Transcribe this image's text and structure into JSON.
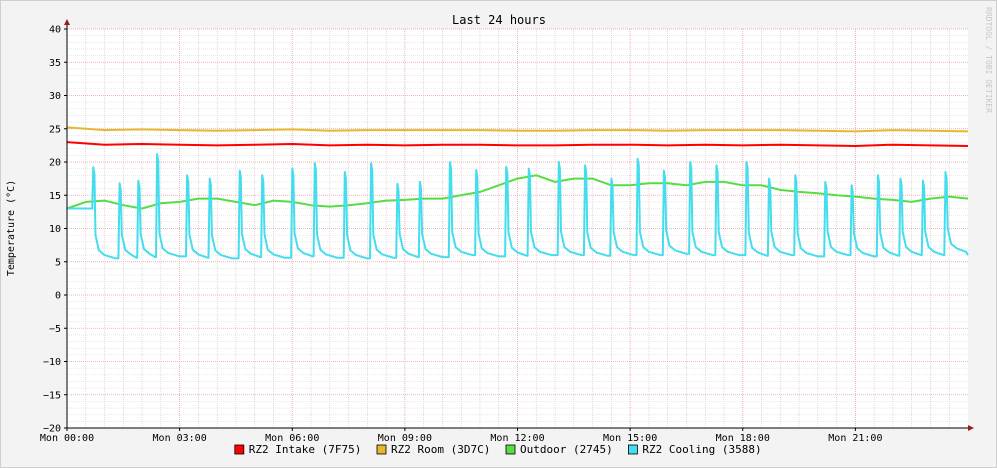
{
  "chart_data": {
    "type": "line",
    "title": "Last 24 hours",
    "ylabel": "Temperature (°C)",
    "xlabel": "",
    "watermark": "RRDTOOL / TOBI OETIKER",
    "ylim": [
      -20,
      40
    ],
    "y_ticks": [
      -20,
      -15,
      -10,
      -5,
      0,
      5,
      10,
      15,
      20,
      25,
      30,
      35,
      40
    ],
    "xlim_hours": [
      0,
      24
    ],
    "x_ticks": [
      {
        "hour": 0,
        "label": "Mon 00:00"
      },
      {
        "hour": 3,
        "label": "Mon 03:00"
      },
      {
        "hour": 6,
        "label": "Mon 06:00"
      },
      {
        "hour": 9,
        "label": "Mon 09:00"
      },
      {
        "hour": 12,
        "label": "Mon 12:00"
      },
      {
        "hour": 15,
        "label": "Mon 15:00"
      },
      {
        "hour": 18,
        "label": "Mon 18:00"
      },
      {
        "hour": 21,
        "label": "Mon 21:00"
      }
    ],
    "grid": true,
    "legend_position": "bottom",
    "series": [
      {
        "name": "RZ2 Intake (7F75)",
        "color": "#ff0000",
        "x": [
          0,
          1,
          2,
          3,
          4,
          5,
          6,
          7,
          8,
          9,
          10,
          11,
          12,
          13,
          14,
          15,
          16,
          17,
          18,
          19,
          20,
          21,
          22,
          23,
          24
        ],
        "values": [
          23,
          22.6,
          22.7,
          22.6,
          22.5,
          22.6,
          22.7,
          22.5,
          22.6,
          22.5,
          22.6,
          22.6,
          22.5,
          22.5,
          22.6,
          22.6,
          22.5,
          22.6,
          22.5,
          22.6,
          22.5,
          22.4,
          22.6,
          22.5,
          22.4
        ]
      },
      {
        "name": "RZ2 Room (3D7C)",
        "color": "#e6b830",
        "x": [
          0,
          1,
          2,
          3,
          4,
          5,
          6,
          7,
          8,
          9,
          10,
          11,
          12,
          13,
          14,
          15,
          16,
          17,
          18,
          19,
          20,
          21,
          22,
          23,
          24
        ],
        "values": [
          25.2,
          24.8,
          24.9,
          24.8,
          24.7,
          24.8,
          24.9,
          24.7,
          24.8,
          24.8,
          24.8,
          24.8,
          24.7,
          24.7,
          24.8,
          24.8,
          24.7,
          24.8,
          24.8,
          24.8,
          24.7,
          24.6,
          24.8,
          24.7,
          24.6
        ]
      },
      {
        "name": "Outdoor (2745)",
        "color": "#55dd44",
        "x": [
          0,
          0.5,
          1,
          1.5,
          2,
          2.5,
          3,
          3.5,
          4,
          4.5,
          5,
          5.5,
          6,
          6.5,
          7,
          7.5,
          8,
          8.5,
          9,
          9.5,
          10,
          10.5,
          11,
          11.5,
          12,
          12.5,
          13,
          13.5,
          14,
          14.5,
          15,
          15.5,
          16,
          16.5,
          17,
          17.5,
          18,
          18.5,
          19,
          19.5,
          20,
          20.5,
          21,
          21.5,
          22,
          22.5,
          23,
          23.5,
          24
        ],
        "values": [
          13.0,
          14.0,
          14.2,
          13.5,
          13.0,
          13.8,
          14.0,
          14.5,
          14.5,
          14.0,
          13.5,
          14.2,
          14.0,
          13.5,
          13.3,
          13.5,
          13.8,
          14.2,
          14.3,
          14.5,
          14.5,
          15.0,
          15.5,
          16.5,
          17.5,
          18.0,
          17.0,
          17.5,
          17.5,
          16.5,
          16.5,
          16.8,
          16.8,
          16.5,
          17.0,
          17.0,
          16.5,
          16.5,
          15.8,
          15.5,
          15.3,
          15.0,
          14.8,
          14.5,
          14.3,
          14.0,
          14.5,
          14.8,
          14.5
        ]
      },
      {
        "name": "RZ2 Cooling (3588)",
        "color": "#44ddee",
        "x": [
          0,
          24
        ],
        "values": [
          13,
          6
        ],
        "cycle_peak_hours": [
          0.7,
          1.4,
          1.9,
          2.4,
          3.2,
          3.8,
          4.6,
          5.2,
          6.0,
          6.6,
          7.4,
          8.1,
          8.8,
          9.4,
          10.2,
          10.9,
          11.7,
          12.3,
          13.1,
          13.8,
          14.5,
          15.2,
          15.9,
          16.6,
          17.3,
          18.1,
          18.7,
          19.4,
          20.2,
          20.9,
          21.6,
          22.2,
          22.8,
          23.4
        ],
        "cycle_peak_values": [
          19.2,
          16.8,
          17.2,
          21.2,
          18.0,
          17.5,
          18.7,
          18.0,
          19.0,
          19.8,
          18.5,
          19.8,
          16.7,
          17.0,
          20.0,
          18.8,
          19.3,
          19.0,
          20.0,
          19.5,
          17.5,
          20.5,
          18.7,
          20.0,
          19.5,
          20.0,
          17.5,
          18.0,
          17.0,
          16.5,
          18.0,
          17.5,
          17.2,
          18.5
        ],
        "cycle_low_values": [
          5.5,
          5.6,
          5.7,
          5.8,
          5.6,
          5.5,
          5.7,
          5.6,
          5.8,
          5.6,
          5.5,
          5.6,
          5.7,
          5.7,
          6.0,
          5.8,
          5.9,
          6.0,
          6.0,
          5.9,
          6.0,
          6.0,
          6.2,
          6.0,
          6.0,
          5.9,
          6.0,
          5.8,
          6.0,
          5.8,
          5.9,
          6.0,
          6.0,
          6.5
        ]
      }
    ]
  }
}
